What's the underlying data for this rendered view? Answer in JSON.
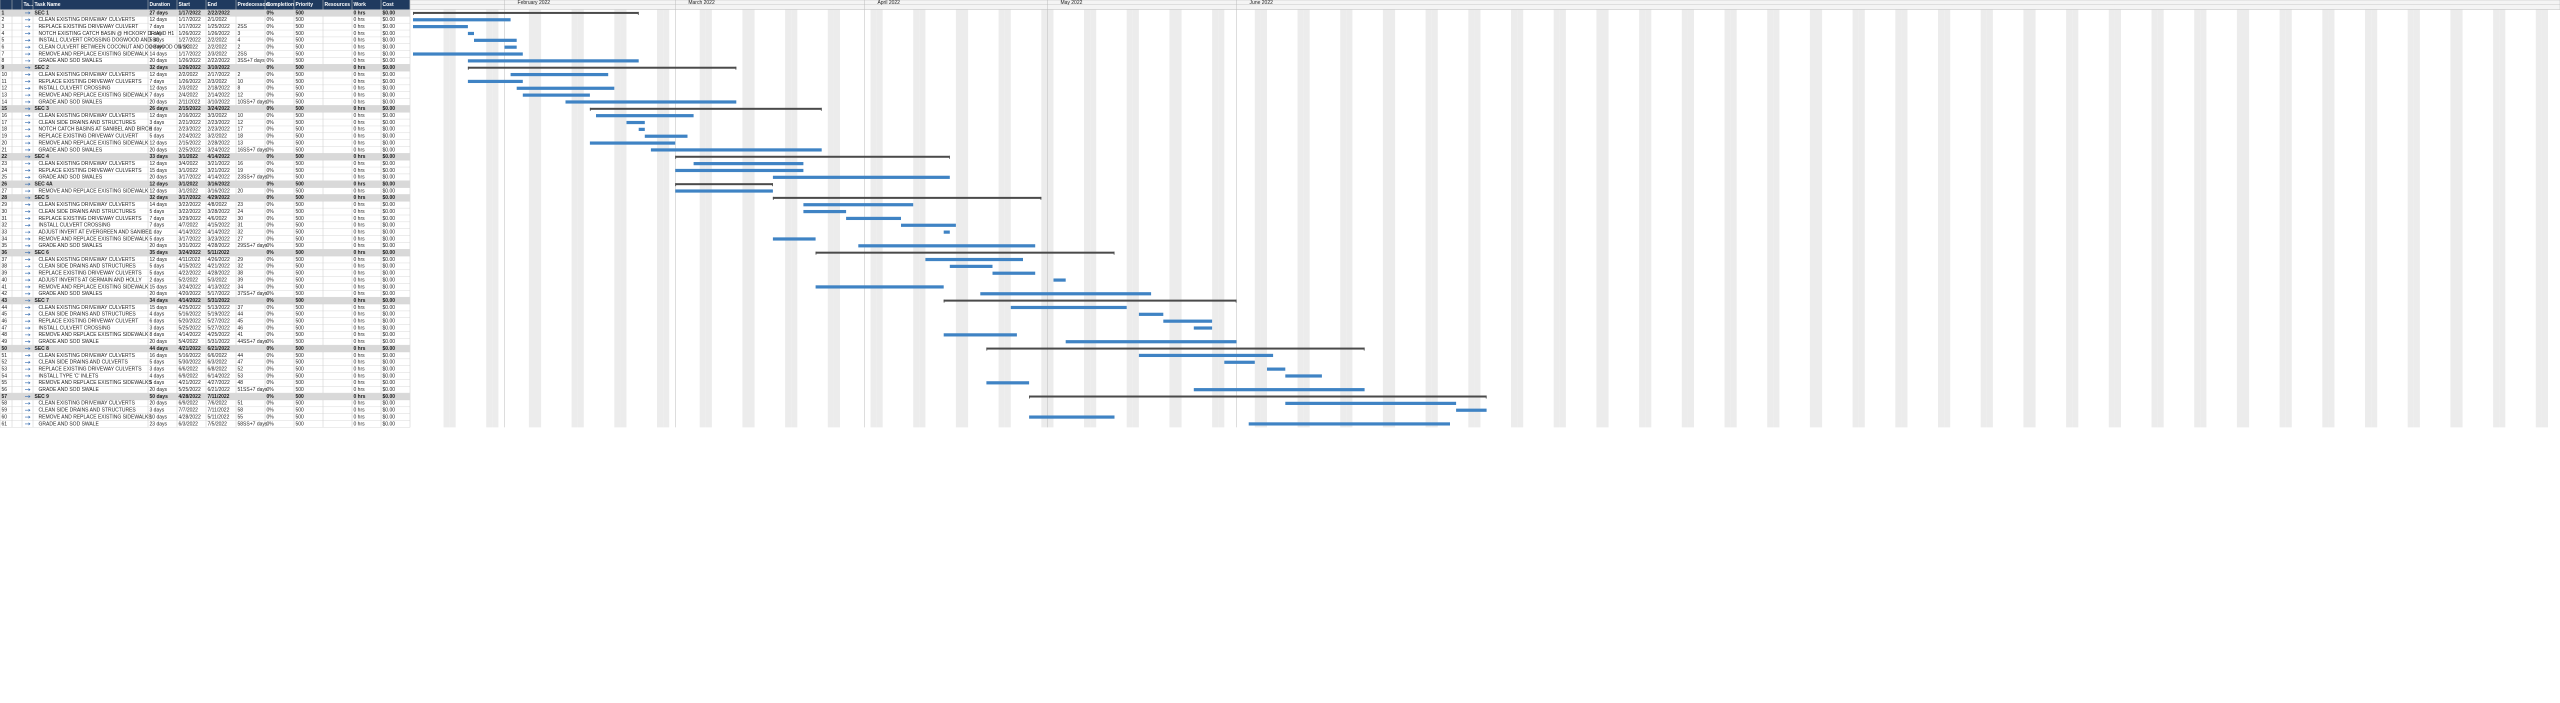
{
  "table": {
    "columns": [
      "Ta...",
      "Task Name",
      "Duration",
      "Start",
      "End",
      "Predecessors",
      "Completion",
      "Priority",
      "Resources",
      "Work",
      "Cost"
    ],
    "rows": [
      {
        "id": 1,
        "name": "SEC 1",
        "duration": "27 days",
        "start": "1/17/2022",
        "end": "2/22/2022",
        "completion": "0%",
        "priority": 500,
        "work": "0 hrs",
        "cost": "$0.00",
        "summary": true
      },
      {
        "id": 2,
        "name": "CLEAN EXISTING DRIVEWAY CULVERTS",
        "duration": "12 days",
        "start": "1/17/2022",
        "end": "2/1/2022",
        "completion": "0%",
        "priority": 500,
        "work": "0 hrs",
        "cost": "$0.00"
      },
      {
        "id": 3,
        "name": "REPLACE EXISTING DRIVEWAY CULVERT",
        "duration": "7 days",
        "start": "1/17/2022",
        "end": "1/25/2022",
        "predecessors": "2SS",
        "completion": "0%",
        "priority": 500,
        "work": "0 hrs",
        "cost": "$0.00"
      },
      {
        "id": 4,
        "name": "NOTCH EXISTING CATCH BASIN @ HICKORY DR AND H1",
        "duration": "1 day",
        "start": "1/26/2022",
        "end": "1/26/2022",
        "predecessors": "3",
        "completion": "0%",
        "priority": 500,
        "work": "0 hrs",
        "cost": "$0.00"
      },
      {
        "id": 5,
        "name": "INSTALL CULVERT CROSSING DOGWOOD AND SC",
        "duration": "5 days",
        "start": "1/27/2022",
        "end": "2/2/2022",
        "predecessors": "4",
        "completion": "0%",
        "priority": 500,
        "work": "0 hrs",
        "cost": "$0.00"
      },
      {
        "id": 6,
        "name": "CLEAN CULVERT BETWEEN COCONUT AND DOGWOOD ON SC",
        "duration": "2 days",
        "start": "2/1/2022",
        "end": "2/2/2022",
        "predecessors": "2",
        "completion": "0%",
        "priority": 500,
        "work": "0 hrs",
        "cost": "$0.00"
      },
      {
        "id": 7,
        "name": "REMOVE AND REPLACE EXISTING SIDEWALK",
        "duration": "14 days",
        "start": "1/17/2022",
        "end": "2/3/2022",
        "predecessors": "2SS",
        "completion": "0%",
        "priority": 500,
        "work": "0 hrs",
        "cost": "$0.00"
      },
      {
        "id": 8,
        "name": "GRADE AND SOD SWALES",
        "duration": "20 days",
        "start": "1/26/2022",
        "end": "2/22/2022",
        "predecessors": "3SS+7 days",
        "completion": "0%",
        "priority": 500,
        "work": "0 hrs",
        "cost": "$0.00"
      },
      {
        "id": 9,
        "name": "SEC 2",
        "duration": "32 days",
        "start": "1/26/2022",
        "end": "3/10/2022",
        "completion": "0%",
        "priority": 500,
        "work": "0 hrs",
        "cost": "$0.00",
        "summary": true
      },
      {
        "id": 10,
        "name": "CLEAN EXISTING DRIVEWAY CULVERTS",
        "duration": "12 days",
        "start": "2/2/2022",
        "end": "2/17/2022",
        "predecessors": "2",
        "completion": "0%",
        "priority": 500,
        "work": "0 hrs",
        "cost": "$0.00"
      },
      {
        "id": 11,
        "name": "REPLACE EXISTING DRIVEWAY CULVERTS",
        "duration": "7 days",
        "start": "1/26/2022",
        "end": "2/3/2022",
        "predecessors": "10",
        "completion": "0%",
        "priority": 500,
        "work": "0 hrs",
        "cost": "$0.00"
      },
      {
        "id": 12,
        "name": "INSTALL CULVERT CROSSING",
        "duration": "12 days",
        "start": "2/3/2022",
        "end": "2/18/2022",
        "predecessors": "8",
        "completion": "0%",
        "priority": 500,
        "work": "0 hrs",
        "cost": "$0.00"
      },
      {
        "id": 13,
        "name": "REMOVE AND REPLACE EXISTING SIDEWALK",
        "duration": "7 days",
        "start": "2/4/2022",
        "end": "2/14/2022",
        "predecessors": "12",
        "completion": "0%",
        "priority": 500,
        "work": "0 hrs",
        "cost": "$0.00"
      },
      {
        "id": 14,
        "name": "GRADE AND SOD SWALES",
        "duration": "20 days",
        "start": "2/11/2022",
        "end": "3/10/2022",
        "predecessors": "10SS+7 days",
        "completion": "0%",
        "priority": 500,
        "work": "0 hrs",
        "cost": "$0.00"
      },
      {
        "id": 15,
        "name": "SEC 3",
        "duration": "26 days",
        "start": "2/15/2022",
        "end": "3/24/2022",
        "completion": "0%",
        "priority": 500,
        "work": "0 hrs",
        "cost": "$0.00",
        "summary": true
      },
      {
        "id": 16,
        "name": "CLEAN EXISTING DRIVEWAY CULVERTS",
        "duration": "12 days",
        "start": "2/16/2022",
        "end": "3/3/2022",
        "predecessors": "10",
        "completion": "0%",
        "priority": 500,
        "work": "0 hrs",
        "cost": "$0.00"
      },
      {
        "id": 17,
        "name": "CLEAN SIDE DRAINS AND STRUCTURES",
        "duration": "3 days",
        "start": "2/21/2022",
        "end": "2/23/2022",
        "predecessors": "12",
        "completion": "0%",
        "priority": 500,
        "work": "0 hrs",
        "cost": "$0.00"
      },
      {
        "id": 18,
        "name": "NOTCH CATCH BASINS AT SANIBEL AND BIRCH",
        "duration": "1 day",
        "start": "2/23/2022",
        "end": "2/23/2022",
        "predecessors": "17",
        "completion": "0%",
        "priority": 500,
        "work": "0 hrs",
        "cost": "$0.00"
      },
      {
        "id": 19,
        "name": "REPLACE EXISTING DRIVEWAY CULVERT",
        "duration": "5 days",
        "start": "2/24/2022",
        "end": "3/2/2022",
        "predecessors": "18",
        "completion": "0%",
        "priority": 500,
        "work": "0 hrs",
        "cost": "$0.00"
      },
      {
        "id": 20,
        "name": "REMOVE AND REPLACE EXISTING SIDEWALK",
        "duration": "12 days",
        "start": "2/15/2022",
        "end": "2/28/2022",
        "predecessors": "13",
        "completion": "0%",
        "priority": 500,
        "work": "0 hrs",
        "cost": "$0.00"
      },
      {
        "id": 21,
        "name": "GRADE AND SOD SWALES",
        "duration": "20 days",
        "start": "2/25/2022",
        "end": "3/24/2022",
        "predecessors": "16SS+7 days",
        "completion": "0%",
        "priority": 500,
        "work": "0 hrs",
        "cost": "$0.00"
      },
      {
        "id": 22,
        "name": "SEC 4",
        "duration": "33 days",
        "start": "3/1/2022",
        "end": "4/14/2022",
        "completion": "0%",
        "priority": 500,
        "work": "0 hrs",
        "cost": "$0.00",
        "summary": true
      },
      {
        "id": 23,
        "name": "CLEAN EXISTING DRIVEWAY CULVERTS",
        "duration": "12 days",
        "start": "3/4/2022",
        "end": "3/21/2022",
        "predecessors": "16",
        "completion": "0%",
        "priority": 500,
        "work": "0 hrs",
        "cost": "$0.00"
      },
      {
        "id": 24,
        "name": "REPLACE EXISTING DRIVEWAY CULVERTS",
        "duration": "15 days",
        "start": "3/1/2022",
        "end": "3/21/2022",
        "predecessors": "19",
        "completion": "0%",
        "priority": 500,
        "work": "0 hrs",
        "cost": "$0.00"
      },
      {
        "id": 25,
        "name": "GRADE AND SOD SWALES",
        "duration": "20 days",
        "start": "3/17/2022",
        "end": "4/14/2022",
        "predecessors": "23SS+7 days",
        "completion": "0%",
        "priority": 500,
        "work": "0 hrs",
        "cost": "$0.00"
      },
      {
        "id": 26,
        "name": "SEC 4A",
        "duration": "12 days",
        "start": "3/1/2022",
        "end": "3/16/2022",
        "completion": "0%",
        "priority": 500,
        "work": "0 hrs",
        "cost": "$0.00",
        "summary": true
      },
      {
        "id": 27,
        "name": "REMOVE AND REPLACE EXISTING SIDEWALK",
        "duration": "12 days",
        "start": "3/1/2022",
        "end": "3/16/2022",
        "predecessors": "20",
        "completion": "0%",
        "priority": 500,
        "work": "0 hrs",
        "cost": "$0.00"
      },
      {
        "id": 28,
        "name": "SEC 5",
        "duration": "32 days",
        "start": "3/17/2022",
        "end": "4/29/2022",
        "completion": "0%",
        "priority": 500,
        "work": "0 hrs",
        "cost": "$0.00",
        "summary": true
      },
      {
        "id": 29,
        "name": "CLEAN EXISTING DRIVEWAY CULVERTS",
        "duration": "14 days",
        "start": "3/22/2022",
        "end": "4/8/2022",
        "predecessors": "23",
        "completion": "0%",
        "priority": 500,
        "work": "0 hrs",
        "cost": "$0.00"
      },
      {
        "id": 30,
        "name": "CLEAN SIDE DRAINS AND STRUCTURES",
        "duration": "5 days",
        "start": "3/22/2022",
        "end": "3/28/2022",
        "predecessors": "24",
        "completion": "0%",
        "priority": 500,
        "work": "0 hrs",
        "cost": "$0.00"
      },
      {
        "id": 31,
        "name": "REPLACE EXISTING DRIVEWAY CULVERTS",
        "duration": "7 days",
        "start": "3/29/2022",
        "end": "4/6/2022",
        "predecessors": "30",
        "completion": "0%",
        "priority": 500,
        "work": "0 hrs",
        "cost": "$0.00"
      },
      {
        "id": 32,
        "name": "INSTALL CULVERT CROSSING",
        "duration": "7 days",
        "start": "4/7/2022",
        "end": "4/15/2022",
        "predecessors": "31",
        "completion": "0%",
        "priority": 500,
        "work": "0 hrs",
        "cost": "$0.00"
      },
      {
        "id": 33,
        "name": "ADJUST INVERT AT EVERGREEN AND SANIBEL",
        "duration": "1 day",
        "start": "4/14/2022",
        "end": "4/14/2022",
        "predecessors": "32",
        "completion": "0%",
        "priority": 500,
        "work": "0 hrs",
        "cost": "$0.00"
      },
      {
        "id": 34,
        "name": "REMOVE AND REPLACE EXISTING SIDEWALK",
        "duration": "5 days",
        "start": "3/17/2022",
        "end": "3/23/2022",
        "predecessors": "27",
        "completion": "0%",
        "priority": 500,
        "work": "0 hrs",
        "cost": "$0.00"
      },
      {
        "id": 35,
        "name": "GRADE AND SOD SWALES",
        "duration": "20 days",
        "start": "3/31/2022",
        "end": "4/28/2022",
        "predecessors": "29SS+7 days",
        "completion": "0%",
        "priority": 500,
        "work": "0 hrs",
        "cost": "$0.00"
      },
      {
        "id": 36,
        "name": "SEC 6",
        "duration": "35 days",
        "start": "3/24/2022",
        "end": "5/11/2022",
        "completion": "0%",
        "priority": 500,
        "work": "0 hrs",
        "cost": "$0.00",
        "summary": true
      },
      {
        "id": 37,
        "name": "CLEAN EXISTING DRIVEWAY CULVERTS",
        "duration": "12 days",
        "start": "4/11/2022",
        "end": "4/26/2022",
        "predecessors": "29",
        "completion": "0%",
        "priority": 500,
        "work": "0 hrs",
        "cost": "$0.00"
      },
      {
        "id": 38,
        "name": "CLEAN SIDE DRAINS AND STRUCTURES",
        "duration": "5 days",
        "start": "4/15/2022",
        "end": "4/21/2022",
        "predecessors": "32",
        "completion": "0%",
        "priority": 500,
        "work": "0 hrs",
        "cost": "$0.00"
      },
      {
        "id": 39,
        "name": "REPLACE EXISTING DRIVEWAY CULVERTS",
        "duration": "5 days",
        "start": "4/22/2022",
        "end": "4/28/2022",
        "predecessors": "38",
        "completion": "0%",
        "priority": 500,
        "work": "0 hrs",
        "cost": "$0.00"
      },
      {
        "id": 40,
        "name": "ADJUST INVERTS AT GERMAIN AND HOLLY",
        "duration": "2 days",
        "start": "5/2/2022",
        "end": "5/3/2022",
        "predecessors": "39",
        "completion": "0%",
        "priority": 500,
        "work": "0 hrs",
        "cost": "$0.00"
      },
      {
        "id": 41,
        "name": "REMOVE AND REPLACE EXISTING SIDEWALK",
        "duration": "15 days",
        "start": "3/24/2022",
        "end": "4/13/2022",
        "predecessors": "34",
        "completion": "0%",
        "priority": 500,
        "work": "0 hrs",
        "cost": "$0.00"
      },
      {
        "id": 42,
        "name": "GRADE AND SOD SWALES",
        "duration": "20 days",
        "start": "4/20/2022",
        "end": "5/17/2022",
        "predecessors": "37SS+7 days",
        "completion": "0%",
        "priority": 500,
        "work": "0 hrs",
        "cost": "$0.00"
      },
      {
        "id": 43,
        "name": "SEC 7",
        "duration": "34 days",
        "start": "4/14/2022",
        "end": "5/31/2022",
        "completion": "0%",
        "priority": 500,
        "work": "0 hrs",
        "cost": "$0.00",
        "summary": true
      },
      {
        "id": 44,
        "name": "CLEAN EXISTING DRIVEWAY CULVERTS",
        "duration": "15 days",
        "start": "4/25/2022",
        "end": "5/13/2022",
        "predecessors": "37",
        "completion": "0%",
        "priority": 500,
        "work": "0 hrs",
        "cost": "$0.00"
      },
      {
        "id": 45,
        "name": "CLEAN SIDE DRAINS AND STRUCTURES",
        "duration": "4 days",
        "start": "5/16/2022",
        "end": "5/19/2022",
        "predecessors": "44",
        "completion": "0%",
        "priority": 500,
        "work": "0 hrs",
        "cost": "$0.00"
      },
      {
        "id": 46,
        "name": "REPLACE EXISTING DRIVEWAY CULVERT",
        "duration": "6 days",
        "start": "5/20/2022",
        "end": "5/27/2022",
        "predecessors": "45",
        "completion": "0%",
        "priority": 500,
        "work": "0 hrs",
        "cost": "$0.00"
      },
      {
        "id": 47,
        "name": "INSTALL CULVERT CROSSING",
        "duration": "3 days",
        "start": "5/25/2022",
        "end": "5/27/2022",
        "predecessors": "46",
        "completion": "0%",
        "priority": 500,
        "work": "0 hrs",
        "cost": "$0.00"
      },
      {
        "id": 48,
        "name": "REMOVE AND REPLACE EXISTING SIDEWALK",
        "duration": "8 days",
        "start": "4/14/2022",
        "end": "4/25/2022",
        "predecessors": "41",
        "completion": "0%",
        "priority": 500,
        "work": "0 hrs",
        "cost": "$0.00"
      },
      {
        "id": 49,
        "name": "GRADE AND SOD SWALE",
        "duration": "20 days",
        "start": "5/4/2022",
        "end": "5/31/2022",
        "predecessors": "44SS+7 days",
        "completion": "0%",
        "priority": 500,
        "work": "0 hrs",
        "cost": "$0.00"
      },
      {
        "id": 50,
        "name": "SEC 8",
        "duration": "44 days",
        "start": "4/21/2022",
        "end": "6/21/2022",
        "completion": "0%",
        "priority": 500,
        "work": "0 hrs",
        "cost": "$0.00",
        "summary": true
      },
      {
        "id": 51,
        "name": "CLEAN EXISTING DRIVEWAY CULVERTS",
        "duration": "16 days",
        "start": "5/16/2022",
        "end": "6/6/2022",
        "predecessors": "44",
        "completion": "0%",
        "priority": 500,
        "work": "0 hrs",
        "cost": "$0.00"
      },
      {
        "id": 52,
        "name": "CLEAN SIDE DRAINS AND CULVERTS",
        "duration": "5 days",
        "start": "5/30/2022",
        "end": "6/3/2022",
        "predecessors": "47",
        "completion": "0%",
        "priority": 500,
        "work": "0 hrs",
        "cost": "$0.00"
      },
      {
        "id": 53,
        "name": "REPLACE EXISTING DRIVEWAY CULVERTS",
        "duration": "3 days",
        "start": "6/6/2022",
        "end": "6/8/2022",
        "predecessors": "52",
        "completion": "0%",
        "priority": 500,
        "work": "0 hrs",
        "cost": "$0.00"
      },
      {
        "id": 54,
        "name": "INSTALL TYPE 'C' INLETS",
        "duration": "4 days",
        "start": "6/9/2022",
        "end": "6/14/2022",
        "predecessors": "53",
        "completion": "0%",
        "priority": 500,
        "work": "0 hrs",
        "cost": "$0.00"
      },
      {
        "id": 55,
        "name": "REMOVE AND REPLACE EXISTING SIDEWALKS",
        "duration": "5 days",
        "start": "4/21/2022",
        "end": "4/27/2022",
        "predecessors": "48",
        "completion": "0%",
        "priority": 500,
        "work": "0 hrs",
        "cost": "$0.00"
      },
      {
        "id": 56,
        "name": "GRADE AND SOD SWALE",
        "duration": "20 days",
        "start": "5/25/2022",
        "end": "6/21/2022",
        "predecessors": "51SS+7 days",
        "completion": "0%",
        "priority": 500,
        "work": "0 hrs",
        "cost": "$0.00"
      },
      {
        "id": 57,
        "name": "SEC 9",
        "duration": "50 days",
        "start": "4/28/2022",
        "end": "7/11/2022",
        "completion": "0%",
        "priority": 500,
        "work": "0 hrs",
        "cost": "$0.00",
        "summary": true
      },
      {
        "id": 58,
        "name": "CLEAN EXISTING DRIVEWAY CULVERTS",
        "duration": "20 days",
        "start": "6/9/2022",
        "end": "7/6/2022",
        "predecessors": "51",
        "completion": "0%",
        "priority": 500,
        "work": "0 hrs",
        "cost": "$0.00"
      },
      {
        "id": 59,
        "name": "CLEAN SIDE DRAINS AND STRUCTURES",
        "duration": "3 days",
        "start": "7/7/2022",
        "end": "7/11/2022",
        "predecessors": "58",
        "completion": "0%",
        "priority": 500,
        "work": "0 hrs",
        "cost": "$0.00"
      },
      {
        "id": 60,
        "name": "REMOVE AND REPLACE EXISTING SIDEWALKS",
        "duration": "10 days",
        "start": "4/28/2022",
        "end": "5/11/2022",
        "predecessors": "55",
        "completion": "0%",
        "priority": 500,
        "work": "0 hrs",
        "cost": "$0.00"
      },
      {
        "id": 61,
        "name": "GRADE AND SOD SWALE",
        "duration": "23 days",
        "start": "6/3/2022",
        "end": "7/5/2022",
        "predecessors": "58SS+7 days",
        "completion": "0%",
        "priority": 500,
        "work": "0 hrs",
        "cost": "$0.00"
      }
    ]
  },
  "timeline": {
    "months": [
      "February 2022",
      "March 2022",
      "April 2022",
      "May 2022",
      "June 2022"
    ]
  }
}
